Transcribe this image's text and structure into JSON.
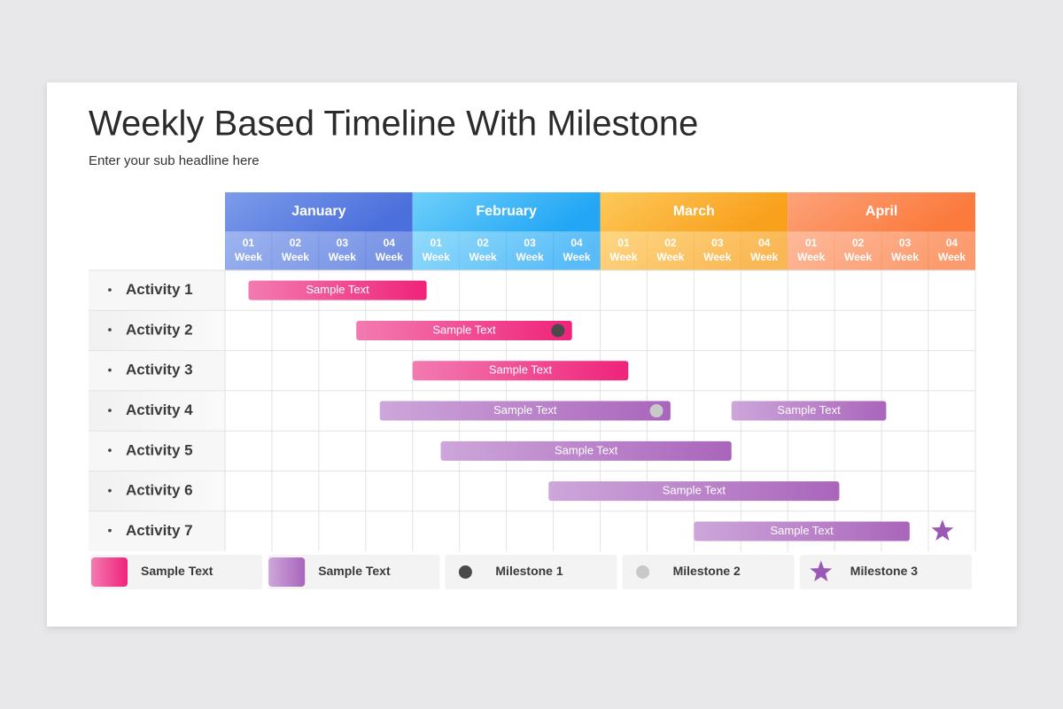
{
  "header": {
    "title": "Weekly Based Timeline With Milestone",
    "subtitle": "Enter your sub headline here"
  },
  "week_label": "Week",
  "months": [
    {
      "name": "January",
      "color_from": "#7d9cea",
      "color_to": "#4b6fdc",
      "weeks": [
        "01",
        "02",
        "03",
        "04"
      ]
    },
    {
      "name": "February",
      "color_from": "#6fd0fa",
      "color_to": "#22a6f5",
      "weeks": [
        "01",
        "02",
        "03",
        "04"
      ]
    },
    {
      "name": "March",
      "color_from": "#fdc95a",
      "color_to": "#f9a01c",
      "weeks": [
        "01",
        "02",
        "03",
        "04"
      ]
    },
    {
      "name": "April",
      "color_from": "#fda27a",
      "color_to": "#fb7a3c",
      "weeks": [
        "01",
        "02",
        "03",
        "04"
      ]
    }
  ],
  "activities": [
    {
      "label": "Activity 1",
      "bars": [
        {
          "text": "Sample Text",
          "start": 0.5,
          "end": 4.3,
          "color": "pink"
        }
      ]
    },
    {
      "label": "Activity 2",
      "bars": [
        {
          "text": "Sample Text",
          "start": 2.8,
          "end": 7.4,
          "color": "pink"
        }
      ],
      "milestone": {
        "week": 7.1,
        "shape": "circle",
        "color": "#4a4a4a"
      }
    },
    {
      "label": "Activity 3",
      "bars": [
        {
          "text": "Sample Text",
          "start": 4.0,
          "end": 8.6,
          "color": "pink"
        }
      ]
    },
    {
      "label": "Activity 4",
      "bars": [
        {
          "text": "Sample Text",
          "start": 3.3,
          "end": 9.5,
          "color": "purple"
        },
        {
          "text": "Sample Text",
          "start": 10.8,
          "end": 14.1,
          "color": "purple"
        }
      ],
      "milestone": {
        "week": 9.2,
        "shape": "circle",
        "color": "#c9c9c9"
      }
    },
    {
      "label": "Activity 5",
      "bars": [
        {
          "text": "Sample Text",
          "start": 4.6,
          "end": 10.8,
          "color": "purple"
        }
      ]
    },
    {
      "label": "Activity 6",
      "bars": [
        {
          "text": "Sample Text",
          "start": 6.9,
          "end": 13.1,
          "color": "purple"
        }
      ]
    },
    {
      "label": "Activity 7",
      "bars": [
        {
          "text": "Sample Text",
          "start": 10.0,
          "end": 14.6,
          "color": "purple"
        }
      ],
      "milestone": {
        "week": 15.3,
        "shape": "star",
        "color": "#9b59b6"
      }
    }
  ],
  "legend": [
    {
      "label": "Sample Text",
      "shape": "square",
      "color": "pink"
    },
    {
      "label": "Sample Text",
      "shape": "square",
      "color": "purple"
    },
    {
      "label": "Milestone 1",
      "shape": "circle",
      "color": "#4a4a4a"
    },
    {
      "label": "Milestone 2",
      "shape": "circle",
      "color": "#c9c9c9"
    },
    {
      "label": "Milestone 3",
      "shape": "star",
      "color": "#9b59b6"
    }
  ]
}
